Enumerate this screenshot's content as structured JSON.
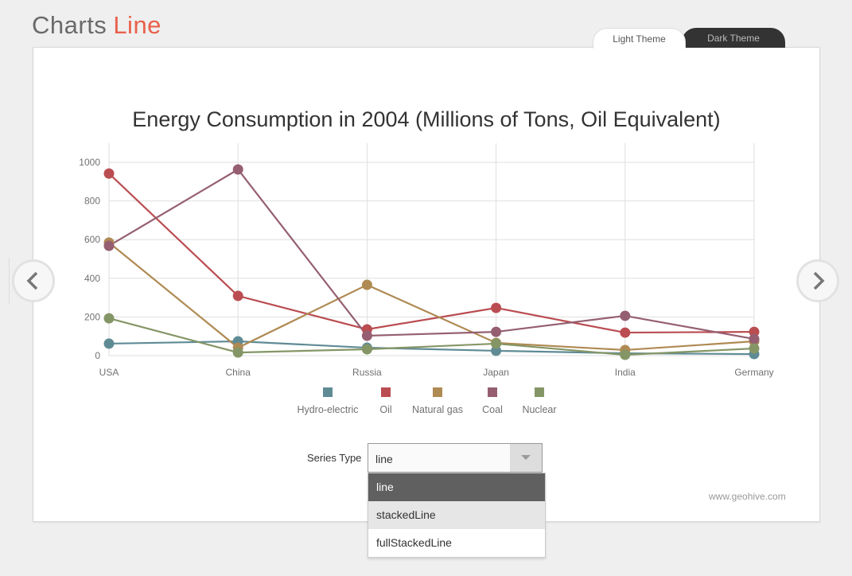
{
  "header": {
    "title": "Charts",
    "subtitle": "Line"
  },
  "theme_tabs": [
    {
      "label": "Light Theme",
      "active": true
    },
    {
      "label": "Dark Theme",
      "active": false
    }
  ],
  "nav": {
    "prev_icon": "chevron-left-icon",
    "next_icon": "chevron-right-icon"
  },
  "series_type": {
    "label": "Series Type",
    "value": "line",
    "options": [
      "line",
      "stackedLine",
      "fullStackedLine"
    ],
    "hovered": "stackedLine"
  },
  "source": "www.geohive.com",
  "chart_data": {
    "type": "line",
    "title": "Energy Consumption in 2004 (Millions of Tons, Oil Equivalent)",
    "xlabel": "",
    "ylabel": "",
    "categories": [
      "USA",
      "China",
      "Russia",
      "Japan",
      "India",
      "Germany"
    ],
    "ylim": [
      0,
      1100
    ],
    "yticks": [
      0,
      200,
      400,
      600,
      800,
      1000
    ],
    "grid": true,
    "legend": "bottom",
    "series": [
      {
        "name": "Hydro-electric",
        "color": "#5f8b95",
        "values": [
          62,
          74,
          41,
          25,
          12,
          8
        ]
      },
      {
        "name": "Oil",
        "color": "#ba4d51",
        "values": [
          942,
          309,
          136,
          247,
          119,
          123
        ]
      },
      {
        "name": "Natural gas",
        "color": "#af8a53",
        "values": [
          585,
          41,
          366,
          66,
          29,
          74
        ]
      },
      {
        "name": "Coal",
        "color": "#955f71",
        "values": [
          568,
          963,
          103,
          123,
          206,
          86
        ]
      },
      {
        "name": "Nuclear",
        "color": "#859666",
        "values": [
          193,
          16,
          33,
          62,
          4,
          37
        ]
      }
    ]
  }
}
